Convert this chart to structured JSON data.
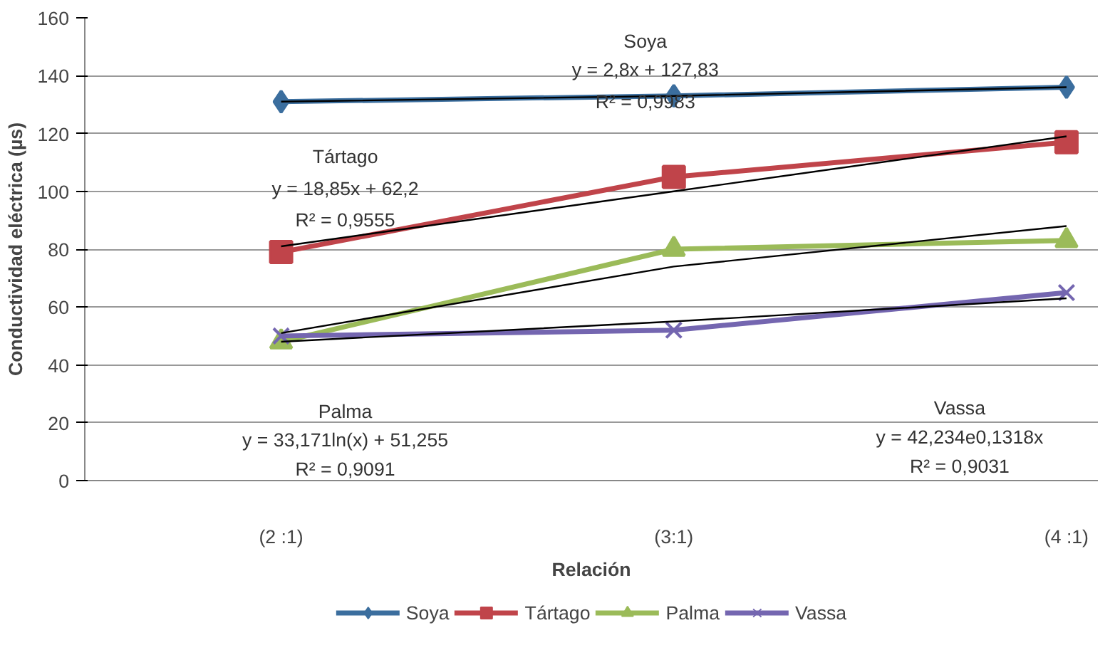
{
  "chart_data": {
    "type": "line",
    "xlabel": "Relación",
    "ylabel": "Conductividad eléctrica (µs)",
    "categories": [
      "(2 :1)",
      "(3:1)",
      "(4 :1)"
    ],
    "ylim": [
      0,
      160
    ],
    "yticks": [
      0,
      20,
      40,
      60,
      80,
      100,
      120,
      140,
      160
    ],
    "grid": "y",
    "legend": "bottom",
    "series": [
      {
        "name": "Soya",
        "color": "#3b6e9e",
        "values": [
          131,
          133,
          136
        ],
        "marker": "diamond"
      },
      {
        "name": "Tártago",
        "color": "#c0444a",
        "values": [
          79,
          105,
          117
        ],
        "marker": "square"
      },
      {
        "name": "Palma",
        "color": "#9bbb59",
        "values": [
          48,
          80,
          83
        ],
        "marker": "triangle"
      },
      {
        "name": "Vassa",
        "color": "#7466b0",
        "values": [
          50,
          52,
          65
        ],
        "marker": "cross"
      },
      {
        "color": "#000000",
        "values": [
          131,
          133,
          136
        ],
        "marker": "none"
      },
      {
        "color": "#000000",
        "values": [
          81,
          100,
          119
        ],
        "marker": "none"
      },
      {
        "color": "#000000",
        "values": [
          51,
          74,
          88
        ],
        "marker": "none"
      },
      {
        "color": "#000000",
        "values": [
          48,
          55,
          63
        ],
        "marker": "none"
      }
    ],
    "annotations": [
      "Soya",
      "y = 2,8x + 127,83",
      "R² = 0,9983",
      "Tártago",
      "y = 18,85x + 62,2",
      "R² = 0,9555",
      "Palma",
      "y = 33,171ln(x) + 51,255",
      "R² = 0,9091",
      "Vassa",
      "y = 42,234e0,1318x",
      "R² = 0,9031"
    ]
  }
}
